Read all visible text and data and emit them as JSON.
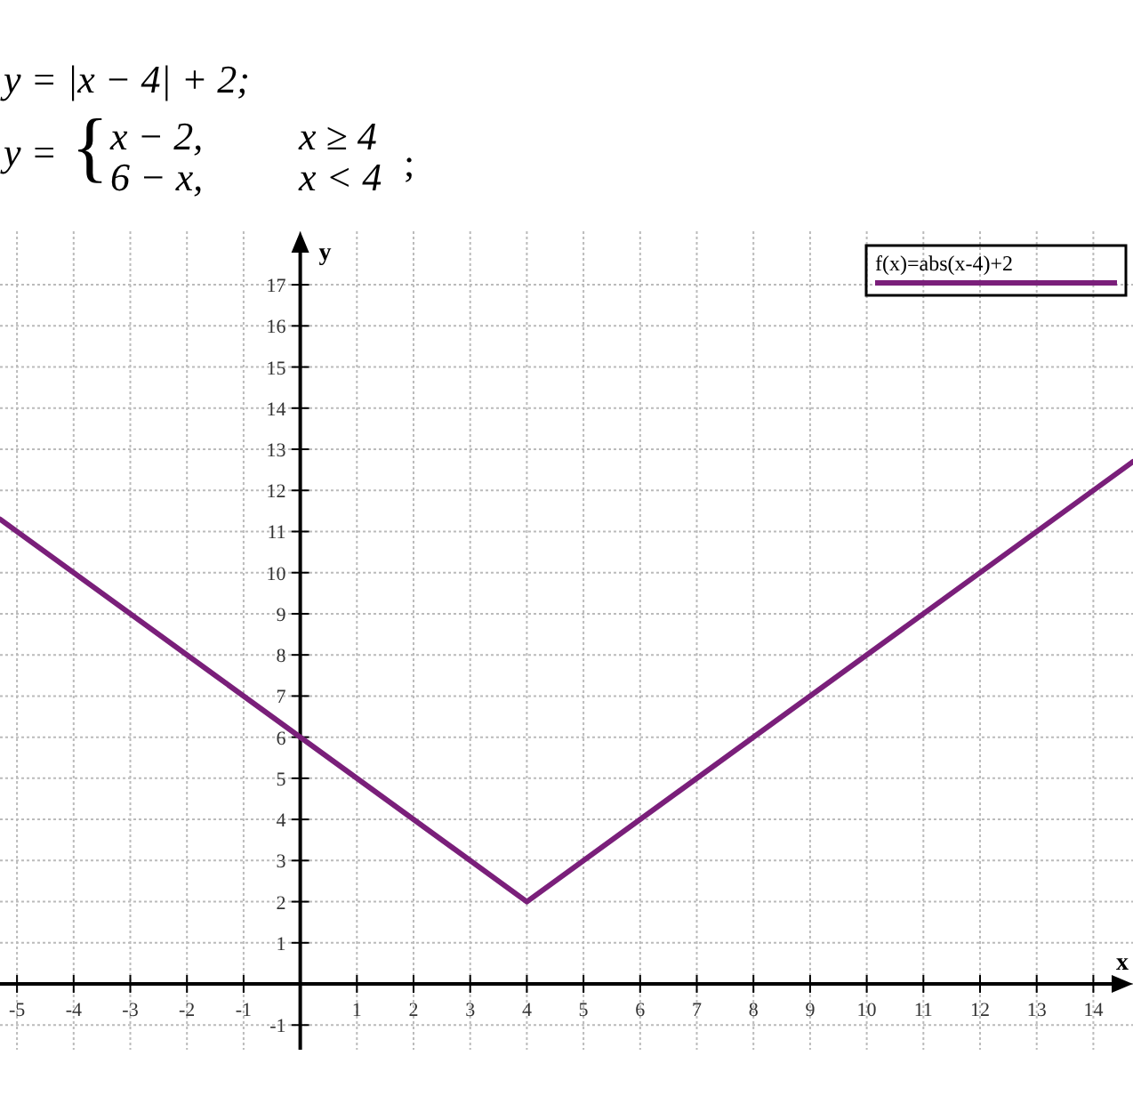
{
  "chart_data": {
    "type": "line",
    "title": "y = |x − 4| + 2;",
    "annotations": [
      "y =",
      "{",
      "x − 2,",
      "x ≥ 4",
      "6 − x,",
      "x < 4",
      ";"
    ],
    "xlabel": "x",
    "ylabel": "y",
    "x": [
      -5.3,
      4,
      14.7
    ],
    "series": [
      {
        "name": "f(x)=abs(x-4)+2",
        "color": "#7a1f7a",
        "values": [
          11.3,
          2,
          12.7
        ]
      }
    ],
    "xlim": [
      -5.3,
      14.7
    ],
    "ylim": [
      -1.6,
      18.3
    ],
    "xticks": [
      -5,
      -4,
      -3,
      -2,
      -1,
      {
        "value": 0,
        "label": null
      },
      1,
      2,
      3,
      4,
      5,
      6,
      7,
      8,
      9,
      10,
      11,
      12,
      13,
      14
    ],
    "yticks": [
      -1,
      {
        "value": 0,
        "label": null
      },
      1,
      2,
      3,
      4,
      5,
      6,
      7,
      8,
      9,
      10,
      11,
      12,
      13,
      14,
      15,
      16,
      17
    ],
    "grid": true,
    "legend": "top right",
    "marker": "none",
    "line_style": "solid"
  }
}
